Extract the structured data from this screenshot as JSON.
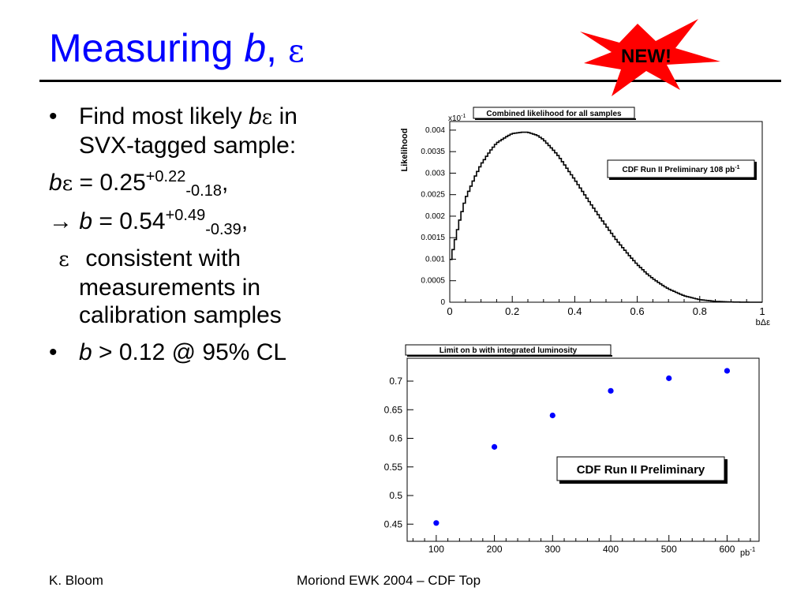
{
  "slide": {
    "title_main": "Measuring ",
    "title_b": "b",
    "title_sep": ", ",
    "title_eps": "ε",
    "badge": "NEW!"
  },
  "bullets": {
    "dot": "•",
    "b1_pre": "Find most likely ",
    "b1_b": "b",
    "b1_eps": "ε",
    "b1_post": " in",
    "b1_line2": "SVX-tagged sample:",
    "eq1_b": "b",
    "eq1_eps": "ε",
    "eq1_mid": " = 0.25",
    "eq1_sup": "+0.22",
    "eq1_sub": "-0.18",
    "eq1_end": ",",
    "eq2_arrow": "→ ",
    "eq2_b": "b",
    "eq2_mid": " = 0.54",
    "eq2_sup": "+0.49",
    "eq2_sub": "-0.39",
    "eq2_end": ",",
    "eps_sym": "ε",
    "eps_line1": " consistent with",
    "eps_line2": "measurements in",
    "eps_line3": "calibration samples",
    "b2_b": "b",
    "b2_rest": " > 0.12 @ 95% CL"
  },
  "footer": {
    "left": "K. Bloom",
    "center": "Moriond EWK 2004 – CDF Top"
  },
  "colors": {
    "title": "#0000ff",
    "burst": "#ff0000",
    "points": "#0000ff"
  },
  "chart_data": [
    {
      "type": "line",
      "title": "Combined likelihood for all samples",
      "annotation": "CDF Run II Preliminary 108 pb",
      "annotation_sup": "-1",
      "xlabel": "bΔε",
      "ylabel": "Likelihood",
      "y_multiplier": "x10",
      "y_multiplier_exp": "-1",
      "xlim": [
        0,
        1
      ],
      "ylim": [
        0,
        0.0042
      ],
      "x_ticks": [
        "0",
        "0.2",
        "0.4",
        "0.6",
        "0.8",
        "1"
      ],
      "y_ticks": [
        "0",
        "0.0005",
        "0.001",
        "0.0015",
        "0.002",
        "0.0025",
        "0.003",
        "0.0035",
        "0.004"
      ],
      "x": [
        0,
        0.01,
        0.03,
        0.05,
        0.08,
        0.1,
        0.13,
        0.15,
        0.18,
        0.2,
        0.23,
        0.25,
        0.28,
        0.3,
        0.33,
        0.35,
        0.38,
        0.4,
        0.43,
        0.45,
        0.48,
        0.5,
        0.53,
        0.55,
        0.58,
        0.6,
        0.63,
        0.65,
        0.68,
        0.7,
        0.75,
        0.8,
        0.85,
        0.9,
        0.95,
        1.0
      ],
      "y": [
        0.00088,
        0.0012,
        0.00185,
        0.0024,
        0.0029,
        0.0032,
        0.00352,
        0.0037,
        0.00384,
        0.00392,
        0.00395,
        0.00395,
        0.00388,
        0.00378,
        0.00355,
        0.00338,
        0.00306,
        0.00285,
        0.00252,
        0.0023,
        0.00198,
        0.00178,
        0.00148,
        0.0013,
        0.00104,
        0.00088,
        0.00067,
        0.00055,
        0.0004,
        0.00031,
        0.00015,
        6e-05,
        2e-05,
        5e-06,
        1e-06,
        0.0
      ]
    },
    {
      "type": "scatter",
      "title": "Limit on b with integrated luminosity",
      "annotation": "CDF Run II Preliminary",
      "xlabel": "pb",
      "xlabel_sup": "-1",
      "ylabel": "",
      "xlim": [
        50,
        655
      ],
      "ylim": [
        0.42,
        0.74
      ],
      "x_ticks": [
        "100",
        "200",
        "300",
        "400",
        "500",
        "600"
      ],
      "y_ticks": [
        "0.45",
        "0.5",
        "0.55",
        "0.6",
        "0.65",
        "0.7"
      ],
      "x": [
        100,
        200,
        300,
        400,
        500,
        600
      ],
      "y": [
        0.452,
        0.585,
        0.64,
        0.683,
        0.705,
        0.718
      ]
    }
  ]
}
